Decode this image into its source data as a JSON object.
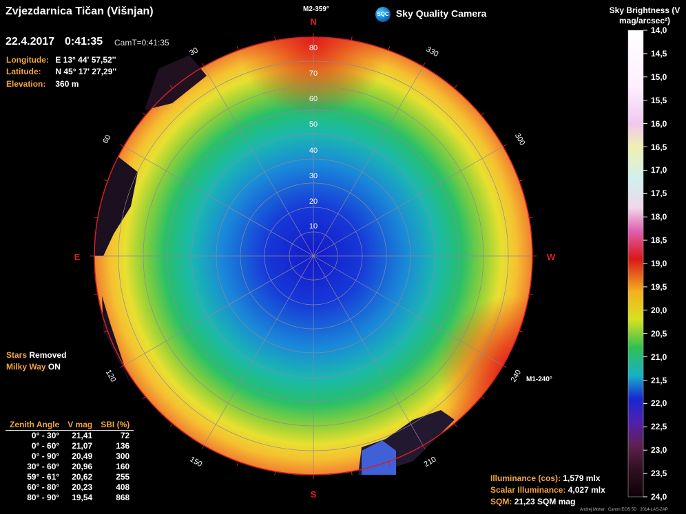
{
  "header": {
    "title": "Zvjezdarnica Tičan (Višnjan)",
    "date": "22.4.2017",
    "time": "0:41:35",
    "cam_time": "CamT=0:41:35"
  },
  "location": [
    {
      "label": "Longitude:",
      "value": "E 13° 44' 57,52''"
    },
    {
      "label": "Latitude:",
      "value": "N 45° 17' 27,29''"
    },
    {
      "label": "Elevation:",
      "value": "360 m"
    }
  ],
  "brand": {
    "logo_text": "SQC",
    "name": "Sky Quality Camera"
  },
  "options": [
    {
      "label": "Stars",
      "value": "Removed"
    },
    {
      "label": "Milky Way",
      "value": "ON"
    }
  ],
  "sky_map": {
    "cardinals": {
      "N": "N",
      "E": "E",
      "W": "W",
      "S": "S"
    },
    "markers": [
      "M2-359°",
      "M1-240°"
    ],
    "zenith_ticks": [
      "10",
      "20",
      "30",
      "40",
      "50",
      "60",
      "70",
      "80"
    ],
    "azimuth_labels": [
      "30",
      "60",
      "120",
      "150",
      "210",
      "240",
      "300",
      "330"
    ],
    "colors": {
      "rim": "#d42020",
      "grid": "#8a8aa0",
      "sky_center": "#1020c8"
    }
  },
  "colorbar": {
    "title": "Sky Brightness (V mag/arcsec²)",
    "ticks": [
      "14,0",
      "14,5",
      "15,0",
      "15,5",
      "16,0",
      "16,5",
      "17,0",
      "17,5",
      "18,0",
      "18,5",
      "19,0",
      "19,5",
      "20,0",
      "20,5",
      "21,0",
      "21,5",
      "22,0",
      "22,5",
      "23,0",
      "23,5",
      "24,0"
    ]
  },
  "zenith_table": {
    "headers": [
      "Zenith Angle",
      "V mag",
      "SBI (%)"
    ],
    "rows": [
      [
        "0° - 30°",
        "21,41",
        "72"
      ],
      [
        "0° - 60°",
        "21,07",
        "136"
      ],
      [
        "0° - 90°",
        "20,49",
        "300"
      ],
      [
        "30° - 60°",
        "20,96",
        "160"
      ],
      [
        "59° - 61°",
        "20,62",
        "255"
      ],
      [
        "60° - 80°",
        "20,23",
        "408"
      ],
      [
        "80° - 90°",
        "19,54",
        "868"
      ]
    ]
  },
  "illuminance": [
    {
      "label": "Illuminance (cos):",
      "value": "1,579 mlx"
    },
    {
      "label": "Scalar Illuminance:",
      "value": "4,027 mlx"
    },
    {
      "label": "SQM:",
      "value": "21,23 SQM mag"
    }
  ],
  "credits": {
    "author": "Andrej Mohar",
    "camera": "Canon EOS 5D",
    "lens": "2014-LAS-ZAP"
  }
}
